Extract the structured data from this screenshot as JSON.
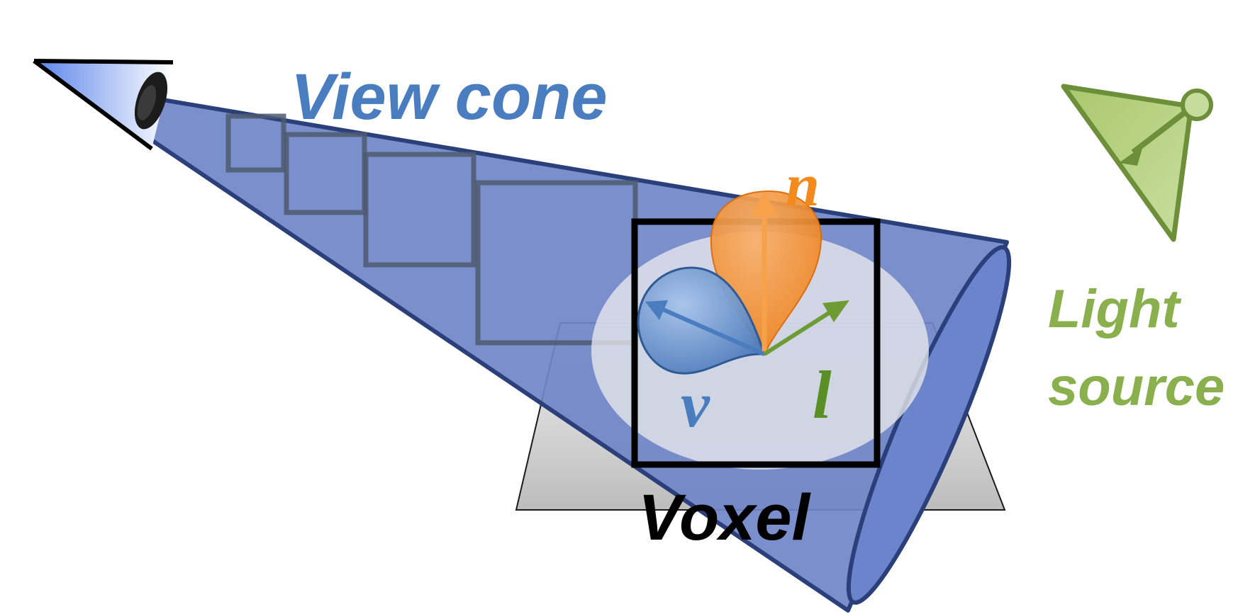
{
  "labels": {
    "view_cone": "View cone",
    "light_source_line1": "Light",
    "light_source_line2": "source",
    "voxel": "Voxel",
    "normal": "n",
    "view_vector": "v",
    "light_vector": "l"
  },
  "colors": {
    "cone_fill": "#6f86c8",
    "cone_stroke": "#2b3f7a",
    "view_text": "#4a7cc0",
    "light_green": "#8ab04e",
    "light_green_dark": "#6e8f39",
    "orange": "#f28a1e",
    "voxel_border": "#000000",
    "plane_fill": "#cfcfcf"
  },
  "icons": {
    "eye": "eye-icon",
    "light_source": "light-source-icon"
  }
}
